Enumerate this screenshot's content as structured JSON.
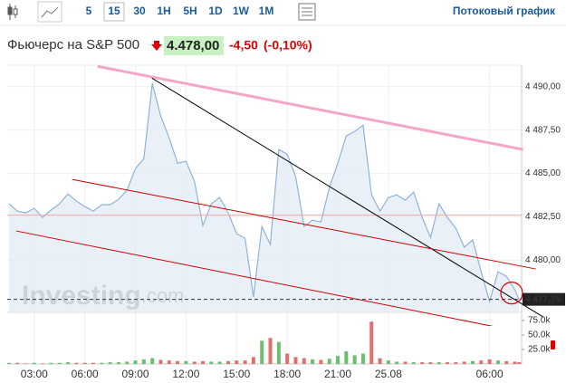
{
  "toolbar": {
    "intervals": [
      "5",
      "15",
      "30",
      "1H",
      "5H",
      "1D",
      "1W",
      "1M"
    ],
    "selected_interval_index": 1,
    "stream_link": "Потоковый график"
  },
  "instrument": {
    "name": "Фьючерс на S&P 500",
    "price": "4.478,00",
    "change": "-4,50",
    "change_percent": "(-0,10%)"
  },
  "chart_data": {
    "type": "line",
    "color": "#8fb3d9",
    "fill": "#e3ecf6",
    "watermark_brand": "Investing",
    "watermark_suffix": ".com",
    "x": [
      1.5,
      2,
      2.5,
      3,
      3.5,
      4,
      4.5,
      5,
      5.5,
      6,
      6.5,
      7,
      7.5,
      8,
      8.5,
      9,
      9.5,
      10,
      10.5,
      11,
      11.5,
      12,
      12.5,
      13,
      13.5,
      14,
      14.5,
      15,
      15.5,
      16,
      16.5,
      17,
      17.5,
      18,
      18.5,
      19,
      19.5,
      20,
      20.5,
      21,
      21.5,
      22,
      22.5,
      23,
      23.5,
      24,
      24.5,
      25,
      25.5,
      26,
      26.5,
      27,
      27.5,
      28,
      28.5,
      29,
      29.5,
      30,
      30.5,
      31,
      31.5,
      31.75
    ],
    "values": [
      4483.25,
      4482.83,
      4482.73,
      4482.99,
      4482.47,
      4482.89,
      4483.25,
      4483.82,
      4483.41,
      4483.09,
      4482.83,
      4483.2,
      4483.2,
      4483.51,
      4484.03,
      4485.28,
      4485.85,
      4490.18,
      4488.3,
      4487.05,
      4485.59,
      4485.7,
      4484.55,
      4482,
      4483.25,
      4483.61,
      4482.73,
      4481.53,
      4481.27,
      4477.89,
      4481.95,
      4480.91,
      4486.38,
      4486.11,
      4484.81,
      4481.95,
      4482.31,
      4482.21,
      4484.19,
      4485.59,
      4487.16,
      4487.42,
      4487.78,
      4483.77,
      4482.83,
      4483.61,
      4483.77,
      4483.46,
      4483.93,
      4482.47,
      4481.32,
      4483.25,
      4482.47,
      4481.84,
      4480.75,
      4481.17,
      4479.34,
      4477.63,
      4479.34,
      4479.08,
      4478.3,
      4477.75
    ],
    "xlim": [
      1.4,
      31.9
    ],
    "xticks": [
      {
        "value": 3,
        "label": "03:00"
      },
      {
        "value": 6,
        "label": "06:00"
      },
      {
        "value": 9,
        "label": "09:00"
      },
      {
        "value": 12,
        "label": "12:00"
      },
      {
        "value": 15,
        "label": "15:00"
      },
      {
        "value": 18,
        "label": "18:00"
      },
      {
        "value": 21,
        "label": "21:00"
      },
      {
        "value": 24,
        "label": "25.08"
      },
      {
        "value": 30,
        "label": "06:00"
      }
    ],
    "ylim": [
      4477,
      4491.6
    ],
    "yticks": [
      {
        "value": 4490,
        "label": "4 490,00"
      },
      {
        "value": 4487.5,
        "label": "4 487,50"
      },
      {
        "value": 4485,
        "label": "4 485,00"
      },
      {
        "value": 4482.5,
        "label": "4 482,50"
      },
      {
        "value": 4480,
        "label": "4 480,00"
      }
    ],
    "last_price": {
      "value": 4477.75,
      "label": "4 477,75"
    },
    "horizontal_line": {
      "value": 4482.6,
      "color": "#f2a6a6"
    },
    "trend_lines": [
      {
        "x": [
          6.76,
          31.99
        ],
        "y": [
          4491.17,
          4486.38
        ],
        "color": "#f4a6c8",
        "width": 3
      },
      {
        "x": [
          9.98,
          33.17
        ],
        "y": [
          4490.49,
          4476.74
        ],
        "color": "#000000",
        "width": 1
      },
      {
        "x": [
          5.25,
          32.74
        ],
        "y": [
          4484.66,
          4479.5
        ],
        "color": "#cc0000",
        "width": 1
      },
      {
        "x": [
          1.93,
          32.74
        ],
        "y": [
          4481.69,
          4475.7
        ],
        "color": "#cc0000",
        "width": 1
      }
    ],
    "volume": {
      "values": [
        2000,
        2000,
        1000,
        2000,
        1000,
        2000,
        2000,
        3000,
        2000,
        2000,
        2000,
        2000,
        3000,
        3000,
        4000,
        6000,
        8000,
        10000,
        7000,
        6000,
        5000,
        5000,
        4000,
        5000,
        4000,
        4000,
        5000,
        6000,
        6000,
        12000,
        40000,
        45000,
        38000,
        18000,
        12000,
        10000,
        8000,
        7000,
        9000,
        14000,
        22000,
        15000,
        18000,
        73000,
        10000,
        6000,
        4000,
        4000,
        3000,
        3000,
        3000,
        3000,
        3000,
        3000,
        4000,
        5000,
        6000,
        8000,
        6000,
        5000,
        4000,
        3000
      ],
      "ylim": [
        0,
        100000
      ],
      "yticks": [
        {
          "value": 75000,
          "label": "75.0k"
        },
        {
          "value": 50000,
          "label": "50.0k"
        },
        {
          "value": 25000,
          "label": "25.0k"
        }
      ],
      "up_color": "#6cbf6c",
      "down_color": "#e07070"
    },
    "grid": true
  }
}
